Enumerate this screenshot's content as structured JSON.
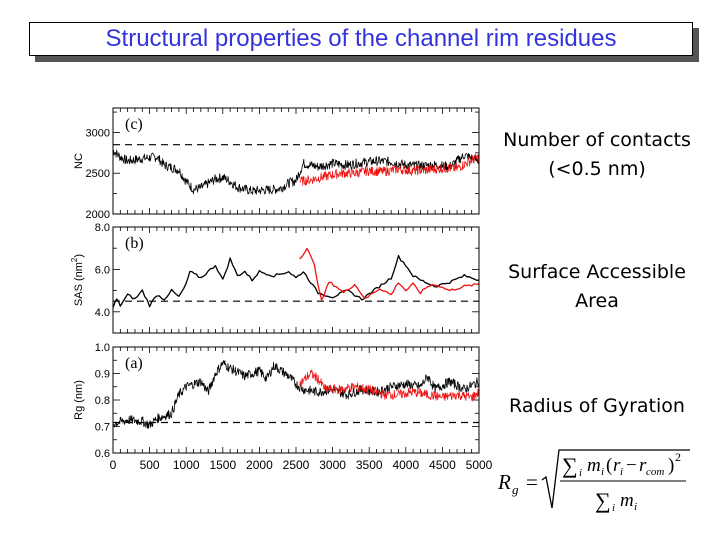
{
  "title": "Structural properties of the channel rim residues",
  "labels": {
    "nc": [
      "Number of contacts",
      "(<0.5 nm)"
    ],
    "sas": [
      "Surface Accessible",
      "Area"
    ],
    "rg": [
      "Radius of Gyration"
    ]
  },
  "formula": {
    "lhs": "R",
    "lhs_sub": "g",
    "equals": "=",
    "sum": "∑",
    "sub_i": "i",
    "m": "m",
    "open": "(",
    "r": "r",
    "minus": "−",
    "r_com_sub": "com",
    "close": ")",
    "power": "2"
  },
  "colors": {
    "title": "#3333dd",
    "series1": "#000000",
    "series2": "#ee1111"
  },
  "chart_data": [
    {
      "type": "line",
      "panel": "(c)",
      "ylabel": "NC",
      "xlim": [
        0,
        5000
      ],
      "ylim": [
        2000,
        3300
      ],
      "yticks": [
        2000,
        2500,
        3000
      ],
      "ytick_labels": [
        "2000",
        "2500",
        "3000"
      ],
      "reference_line": 2850,
      "series": [
        {
          "name": "black",
          "x": [
            0,
            100,
            200,
            400,
            600,
            700,
            900,
            1000,
            1100,
            1200,
            1400,
            1500,
            1600,
            1700,
            1900,
            2000,
            2200,
            2300,
            2400,
            2500,
            2600,
            2800,
            3000,
            3200,
            3400,
            3600,
            3800,
            4000,
            4200,
            4400,
            4600,
            4800,
            5000
          ],
          "values": [
            2780,
            2700,
            2650,
            2680,
            2700,
            2600,
            2540,
            2400,
            2300,
            2320,
            2430,
            2450,
            2400,
            2330,
            2280,
            2290,
            2300,
            2320,
            2380,
            2410,
            2620,
            2580,
            2620,
            2600,
            2630,
            2650,
            2640,
            2600,
            2590,
            2600,
            2580,
            2720,
            2650
          ]
        },
        {
          "name": "red",
          "x": [
            2550,
            2700,
            2900,
            3100,
            3300,
            3500,
            3700,
            3900,
            4100,
            4300,
            4500,
            4700,
            4900,
            5000
          ],
          "values": [
            2400,
            2420,
            2460,
            2500,
            2500,
            2530,
            2520,
            2550,
            2530,
            2540,
            2560,
            2560,
            2660,
            2700
          ]
        }
      ]
    },
    {
      "type": "line",
      "panel": "(b)",
      "ylabel": "SAS (nm",
      "ylabel_sup": "2",
      "ylabel_end": ")",
      "xlim": [
        0,
        5000
      ],
      "ylim": [
        3.0,
        8.0
      ],
      "yticks": [
        4.0,
        6.0,
        8.0
      ],
      "ytick_labels": [
        "4.0",
        "6.0",
        "8.0"
      ],
      "reference_line": 4.5,
      "series": [
        {
          "name": "black",
          "x": [
            0,
            50,
            100,
            200,
            300,
            400,
            500,
            600,
            700,
            800,
            900,
            1000,
            1050,
            1200,
            1400,
            1500,
            1600,
            1700,
            1800,
            1900,
            2000,
            2200,
            2400,
            2500,
            2600,
            2700,
            2800,
            3000,
            3200,
            3400,
            3600,
            3800,
            3900,
            4000,
            4100,
            4200,
            4400,
            4600,
            4800,
            5000
          ],
          "values": [
            4.2,
            4.6,
            4.3,
            4.8,
            4.6,
            5.0,
            4.3,
            4.8,
            4.6,
            5.0,
            4.7,
            5.3,
            5.9,
            5.6,
            6.2,
            5.5,
            6.5,
            5.7,
            5.9,
            5.5,
            5.9,
            5.7,
            5.9,
            5.6,
            5.9,
            5.4,
            4.9,
            4.7,
            5.0,
            4.6,
            5.1,
            5.6,
            6.6,
            6.2,
            5.7,
            5.5,
            5.2,
            5.4,
            5.7,
            5.5
          ]
        },
        {
          "name": "red",
          "x": [
            2550,
            2650,
            2750,
            2850,
            2950,
            3050,
            3150,
            3300,
            3450,
            3550,
            3650,
            3800,
            3900,
            4000,
            4100,
            4200,
            4300,
            4400,
            4600,
            4800,
            5000
          ],
          "values": [
            6.5,
            7.0,
            6.2,
            4.5,
            5.4,
            5.2,
            4.9,
            5.3,
            4.6,
            4.9,
            5.1,
            4.8,
            5.4,
            5.0,
            5.3,
            4.9,
            5.2,
            5.3,
            5.0,
            5.2,
            5.3
          ]
        }
      ]
    },
    {
      "type": "line",
      "panel": "(a)",
      "ylabel": "Rg (nm)",
      "xlim": [
        0,
        5000
      ],
      "ylim": [
        0.6,
        1.0
      ],
      "yticks": [
        0.6,
        0.7,
        0.8,
        0.9,
        1.0
      ],
      "ytick_labels": [
        "0.6",
        "0.7",
        "0.8",
        "0.9",
        "1.0"
      ],
      "xticks": [
        0,
        500,
        1000,
        1500,
        2000,
        2500,
        3000,
        3500,
        4000,
        4500,
        5000
      ],
      "xtick_labels": [
        "0",
        "500",
        "1000",
        "1500",
        "2000",
        "2500",
        "3000",
        "3500",
        "4000",
        "4500",
        "5000"
      ],
      "reference_line": 0.715,
      "series": [
        {
          "name": "black",
          "x": [
            0,
            200,
            400,
            500,
            600,
            800,
            900,
            1000,
            1200,
            1300,
            1400,
            1500,
            1600,
            1800,
            2000,
            2100,
            2200,
            2400,
            2500,
            2600,
            2800,
            3000,
            3200,
            3400,
            3600,
            3800,
            4000,
            4200,
            4300,
            4400,
            4600,
            4800,
            5000
          ],
          "values": [
            0.71,
            0.725,
            0.72,
            0.705,
            0.73,
            0.75,
            0.82,
            0.85,
            0.87,
            0.83,
            0.9,
            0.94,
            0.92,
            0.89,
            0.91,
            0.88,
            0.93,
            0.89,
            0.86,
            0.84,
            0.83,
            0.84,
            0.82,
            0.84,
            0.83,
            0.85,
            0.86,
            0.85,
            0.89,
            0.84,
            0.87,
            0.84,
            0.87
          ]
        },
        {
          "name": "red",
          "x": [
            2550,
            2700,
            2800,
            2900,
            3100,
            3300,
            3500,
            3700,
            3900,
            4100,
            4300,
            4500,
            4700,
            4900,
            5000
          ],
          "values": [
            0.86,
            0.9,
            0.88,
            0.84,
            0.84,
            0.85,
            0.84,
            0.82,
            0.82,
            0.83,
            0.82,
            0.81,
            0.82,
            0.81,
            0.83
          ]
        }
      ]
    }
  ]
}
